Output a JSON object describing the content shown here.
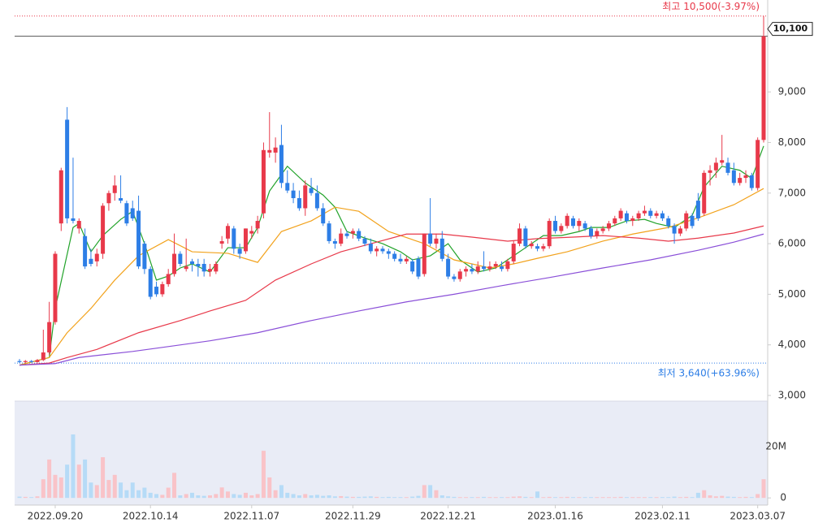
{
  "chart_data": {
    "type": "candlestick",
    "categories": [
      null,
      null,
      null,
      null,
      null,
      null,
      "2022.09.20",
      null,
      null,
      null,
      null,
      null,
      null,
      null,
      null,
      null,
      null,
      null,
      null,
      null,
      null,
      null,
      "2022.10.14",
      null,
      null,
      null,
      null,
      null,
      null,
      null,
      null,
      null,
      null,
      null,
      null,
      null,
      null,
      null,
      null,
      "2022.11.07",
      null,
      null,
      null,
      null,
      null,
      null,
      null,
      null,
      null,
      null,
      null,
      null,
      null,
      null,
      null,
      null,
      "2022.11.29",
      null,
      null,
      null,
      null,
      null,
      null,
      null,
      null,
      null,
      null,
      null,
      null,
      null,
      null,
      null,
      "2022.12.21",
      null,
      null,
      null,
      null,
      null,
      null,
      null,
      null,
      null,
      null,
      null,
      null,
      null,
      null,
      null,
      null,
      null,
      "2023.01.16",
      null,
      null,
      null,
      null,
      null,
      null,
      null,
      null,
      null,
      null,
      null,
      null,
      null,
      null,
      null,
      null,
      null,
      "2023.02.11",
      null,
      null,
      null,
      null,
      null,
      null,
      null,
      null,
      null,
      null,
      null,
      null,
      null,
      null,
      null,
      "2023.03.07",
      null
    ],
    "open": [
      3680,
      3660,
      3680,
      3660,
      3700,
      3850,
      4450,
      6400,
      8450,
      6500,
      6300,
      6150,
      5700,
      5650,
      5800,
      6800,
      7000,
      6900,
      6800,
      6700,
      6650,
      6000,
      5500,
      5150,
      5000,
      5200,
      5400,
      5800,
      5500,
      5650,
      5600,
      5600,
      5450,
      5450,
      6000,
      6100,
      6300,
      5900,
      5850,
      6200,
      6300,
      6600,
      7800,
      7800,
      7950,
      7200,
      7050,
      6900,
      6700,
      7100,
      7000,
      6700,
      6400,
      6050,
      6000,
      6200,
      6200,
      6250,
      6100,
      6000,
      5850,
      5900,
      5850,
      5800,
      5700,
      5650,
      5650,
      5700,
      5400,
      6200,
      6000,
      6100,
      5700,
      5350,
      5300,
      5450,
      5500,
      5450,
      5550,
      5500,
      5550,
      5550,
      5500,
      5650,
      6000,
      6300,
      5950,
      5950,
      5900,
      5950,
      6450,
      6250,
      6350,
      6500,
      6350,
      6400,
      6300,
      6150,
      6250,
      6300,
      6400,
      6500,
      6600,
      6450,
      6500,
      6600,
      6650,
      6550,
      6600,
      6500,
      6350,
      6200,
      6300,
      6550,
      6850,
      6600,
      7400,
      7450,
      7600,
      7600,
      7450,
      7200,
      7300,
      7350,
      7100,
      8050
    ],
    "high": [
      3720,
      3700,
      3700,
      3720,
      4300,
      4850,
      5850,
      7500,
      8700,
      7700,
      6500,
      6300,
      5900,
      5900,
      6800,
      7050,
      7350,
      7350,
      6850,
      6850,
      6950,
      6050,
      5550,
      5250,
      5250,
      5500,
      6200,
      5850,
      6100,
      5700,
      5700,
      5700,
      5600,
      5650,
      6150,
      6400,
      6350,
      6000,
      6300,
      6350,
      6550,
      8000,
      8600,
      8100,
      8350,
      7450,
      7200,
      7050,
      7250,
      7300,
      7150,
      6800,
      6450,
      6100,
      6300,
      6250,
      6300,
      6300,
      6150,
      6100,
      5950,
      5950,
      5900,
      5850,
      5800,
      5750,
      5700,
      5750,
      6200,
      6900,
      6200,
      6250,
      5800,
      5400,
      5500,
      5550,
      5600,
      5650,
      5850,
      5650,
      5650,
      5650,
      5700,
      6050,
      6400,
      6350,
      6050,
      6000,
      6000,
      6500,
      6550,
      6400,
      6600,
      6550,
      6500,
      6450,
      6350,
      6300,
      6350,
      6450,
      6550,
      6700,
      6650,
      6550,
      6650,
      6750,
      6700,
      6650,
      6650,
      6550,
      6400,
      6350,
      6650,
      6600,
      7000,
      7450,
      7550,
      7700,
      8150,
      7700,
      7600,
      7400,
      7450,
      7400,
      8100,
      10500
    ],
    "low": [
      3640,
      3640,
      3650,
      3650,
      3680,
      3800,
      4400,
      6250,
      6400,
      6400,
      6200,
      5500,
      5550,
      5550,
      5700,
      6650,
      6850,
      6800,
      6350,
      6450,
      5500,
      5400,
      4900,
      4950,
      4950,
      5150,
      5350,
      5550,
      5450,
      5450,
      5350,
      5350,
      5350,
      5400,
      5900,
      6000,
      5800,
      5700,
      5800,
      6100,
      6200,
      6500,
      7700,
      7600,
      7100,
      7000,
      6800,
      6650,
      6550,
      6950,
      6650,
      6350,
      6000,
      5900,
      5950,
      6100,
      6100,
      6050,
      5950,
      5800,
      5750,
      5800,
      5700,
      5650,
      5600,
      5600,
      5400,
      5300,
      5350,
      5950,
      5900,
      5650,
      5300,
      5250,
      5250,
      5350,
      5400,
      5400,
      5450,
      5450,
      5500,
      5450,
      5450,
      5600,
      5950,
      5900,
      5900,
      5850,
      5850,
      5900,
      6200,
      6200,
      6300,
      6300,
      6250,
      6250,
      6100,
      6100,
      6200,
      6250,
      6350,
      6450,
      6400,
      6350,
      6450,
      6550,
      6500,
      6500,
      6450,
      6300,
      6000,
      6150,
      6250,
      6300,
      6450,
      6550,
      7150,
      7300,
      7550,
      7350,
      7150,
      7150,
      7200,
      7050,
      7050,
      8000
    ],
    "close": [
      3660,
      3680,
      3660,
      3700,
      3850,
      4450,
      5800,
      7450,
      6500,
      6450,
      6450,
      5550,
      5600,
      5800,
      6750,
      7000,
      7150,
      6850,
      6400,
      6500,
      5550,
      5500,
      4950,
      5000,
      5200,
      5400,
      5800,
      5600,
      5550,
      5600,
      5550,
      5450,
      5500,
      5600,
      6050,
      6350,
      5900,
      5800,
      6300,
      6250,
      6450,
      7850,
      7850,
      7900,
      7200,
      7050,
      6900,
      6700,
      7150,
      7000,
      6700,
      6400,
      6050,
      6000,
      6200,
      6150,
      6250,
      6100,
      6000,
      5850,
      5900,
      5850,
      5800,
      5700,
      5650,
      5700,
      5450,
      5350,
      6200,
      6000,
      6100,
      5700,
      5350,
      5300,
      5450,
      5500,
      5450,
      5550,
      5500,
      5550,
      5600,
      5500,
      5650,
      6000,
      6300,
      5950,
      6000,
      5900,
      5950,
      6450,
      6250,
      6350,
      6550,
      6350,
      6450,
      6300,
      6150,
      6250,
      6300,
      6400,
      6500,
      6650,
      6450,
      6500,
      6600,
      6650,
      6550,
      6600,
      6500,
      6350,
      6200,
      6300,
      6600,
      6350,
      6500,
      7400,
      7450,
      7600,
      7650,
      7400,
      7200,
      7300,
      7350,
      7100,
      8050,
      10100
    ],
    "volume": [
      500000,
      400000,
      300000,
      600000,
      7300000,
      15000000,
      9000000,
      8000000,
      13000000,
      24800000,
      13000000,
      15000000,
      6000000,
      5000000,
      15900000,
      7000000,
      9000000,
      6000000,
      3000000,
      6000000,
      3000000,
      4000000,
      2000000,
      1500000,
      1200000,
      4000000,
      9800000,
      1000000,
      1500000,
      2000000,
      1000000,
      800000,
      1000000,
      1500000,
      4100000,
      2500000,
      1500000,
      1200000,
      2000000,
      1000000,
      1500000,
      18400000,
      8000000,
      3000000,
      5000000,
      2000000,
      1500000,
      1000000,
      1500000,
      1000000,
      1200000,
      800000,
      1000000,
      600000,
      700000,
      500000,
      400000,
      400000,
      500000,
      600000,
      400000,
      300000,
      400000,
      300000,
      300000,
      300000,
      500000,
      800000,
      5000000,
      5000000,
      3000000,
      1000000,
      600000,
      400000,
      300000,
      300000,
      300000,
      300000,
      400000,
      300000,
      300000,
      300000,
      300000,
      500000,
      600000,
      400000,
      300000,
      2500000,
      300000,
      400000,
      300000,
      300000,
      400000,
      300000,
      300000,
      300000,
      300000,
      300000,
      300000,
      300000,
      300000,
      400000,
      300000,
      300000,
      300000,
      300000,
      300000,
      300000,
      300000,
      300000,
      500000,
      300000,
      400000,
      300000,
      2000000,
      3000000,
      1000000,
      600000,
      800000,
      500000,
      400000,
      300000,
      400000,
      300000,
      1500000,
      7300000
    ],
    "ylim": [
      3000,
      10800
    ],
    "yticks": [
      {
        "value": 3000,
        "label": "3,000"
      },
      {
        "value": 4000,
        "label": "4,000"
      },
      {
        "value": 5000,
        "label": "5,000"
      },
      {
        "value": 6000,
        "label": "6,000"
      },
      {
        "value": 7000,
        "label": "7,000"
      },
      {
        "value": 8000,
        "label": "8,000"
      },
      {
        "value": 9000,
        "label": "9,000"
      }
    ],
    "volume_ylim": [
      -2800000,
      37800000
    ],
    "volume_yticks": [
      0,
      {
        "value": 20000000,
        "label": "20M"
      }
    ],
    "up_color": "#e8394a",
    "down_color": "#2d7ee6",
    "volume_up_color": "#f9c3c8",
    "volume_down_color": "#b6dbf7",
    "moving_averages": [
      {
        "color": "#22a32a",
        "x": [
          0,
          5,
          6,
          9,
          10,
          12,
          14,
          17,
          19,
          21,
          23,
          25,
          27,
          29,
          32,
          35,
          38,
          40,
          42,
          45,
          48,
          51,
          53,
          55,
          58,
          61,
          64,
          66,
          69,
          72,
          74,
          77,
          80,
          83,
          85,
          88,
          91,
          94,
          96,
          99,
          102,
          105,
          107,
          110,
          113,
          115,
          118,
          121,
          123,
          125
        ],
        "values": [
          3600,
          3750,
          4720,
          6320,
          6400,
          5840,
          6160,
          6480,
          6640,
          6000,
          5280,
          5360,
          5520,
          5600,
          5440,
          5920,
          5920,
          6320,
          7040,
          7530,
          7200,
          6960,
          6720,
          6240,
          6110,
          6000,
          5840,
          5680,
          5760,
          6000,
          5680,
          5440,
          5520,
          5760,
          5920,
          6160,
          6160,
          6240,
          6320,
          6320,
          6450,
          6480,
          6400,
          6320,
          6560,
          7120,
          7530,
          7450,
          7290,
          7930
        ]
      },
      {
        "color": "#f2a21c",
        "x": [
          0,
          5,
          8,
          12,
          16,
          20,
          25,
          29,
          35,
          40,
          44,
          49,
          53,
          57,
          62,
          68,
          73,
          79,
          83,
          87,
          92,
          98,
          103,
          109,
          114,
          120,
          125
        ],
        "values": [
          3600,
          3750,
          4240,
          4720,
          5280,
          5760,
          6080,
          5840,
          5810,
          5630,
          6240,
          6450,
          6720,
          6640,
          6240,
          6000,
          5680,
          5520,
          5600,
          5710,
          5840,
          6050,
          6190,
          6320,
          6510,
          6770,
          7090
        ]
      },
      {
        "color": "#e8394a",
        "x": [
          0,
          5,
          8,
          13,
          20,
          27,
          32,
          38,
          43,
          49,
          54,
          60,
          65,
          71,
          76,
          82,
          87,
          93,
          98,
          104,
          109,
          114,
          120,
          125
        ],
        "values": [
          3600,
          3640,
          3750,
          3910,
          4240,
          4480,
          4670,
          4880,
          5280,
          5600,
          5840,
          6030,
          6190,
          6190,
          6130,
          6050,
          6100,
          6130,
          6160,
          6110,
          6050,
          6110,
          6210,
          6350
        ]
      },
      {
        "color": "#8a4fd8",
        "x": [
          0,
          6,
          10,
          19,
          24,
          32,
          40,
          49,
          57,
          65,
          73,
          81,
          89,
          98,
          106,
          114,
          120,
          125
        ],
        "values": [
          3600,
          3630,
          3750,
          3870,
          3950,
          4080,
          4240,
          4480,
          4670,
          4850,
          5000,
          5170,
          5330,
          5520,
          5680,
          5870,
          6030,
          6190
        ]
      }
    ],
    "high_marker": {
      "value": 10500,
      "label": "최고 10,500(-3.97%)",
      "color": "#e8394a"
    },
    "low_marker": {
      "value": 3640,
      "label": "최저 3,640(+63.96%)",
      "color": "#2d7ee6"
    },
    "current_price": {
      "value": 10100,
      "label": "10,100"
    }
  }
}
